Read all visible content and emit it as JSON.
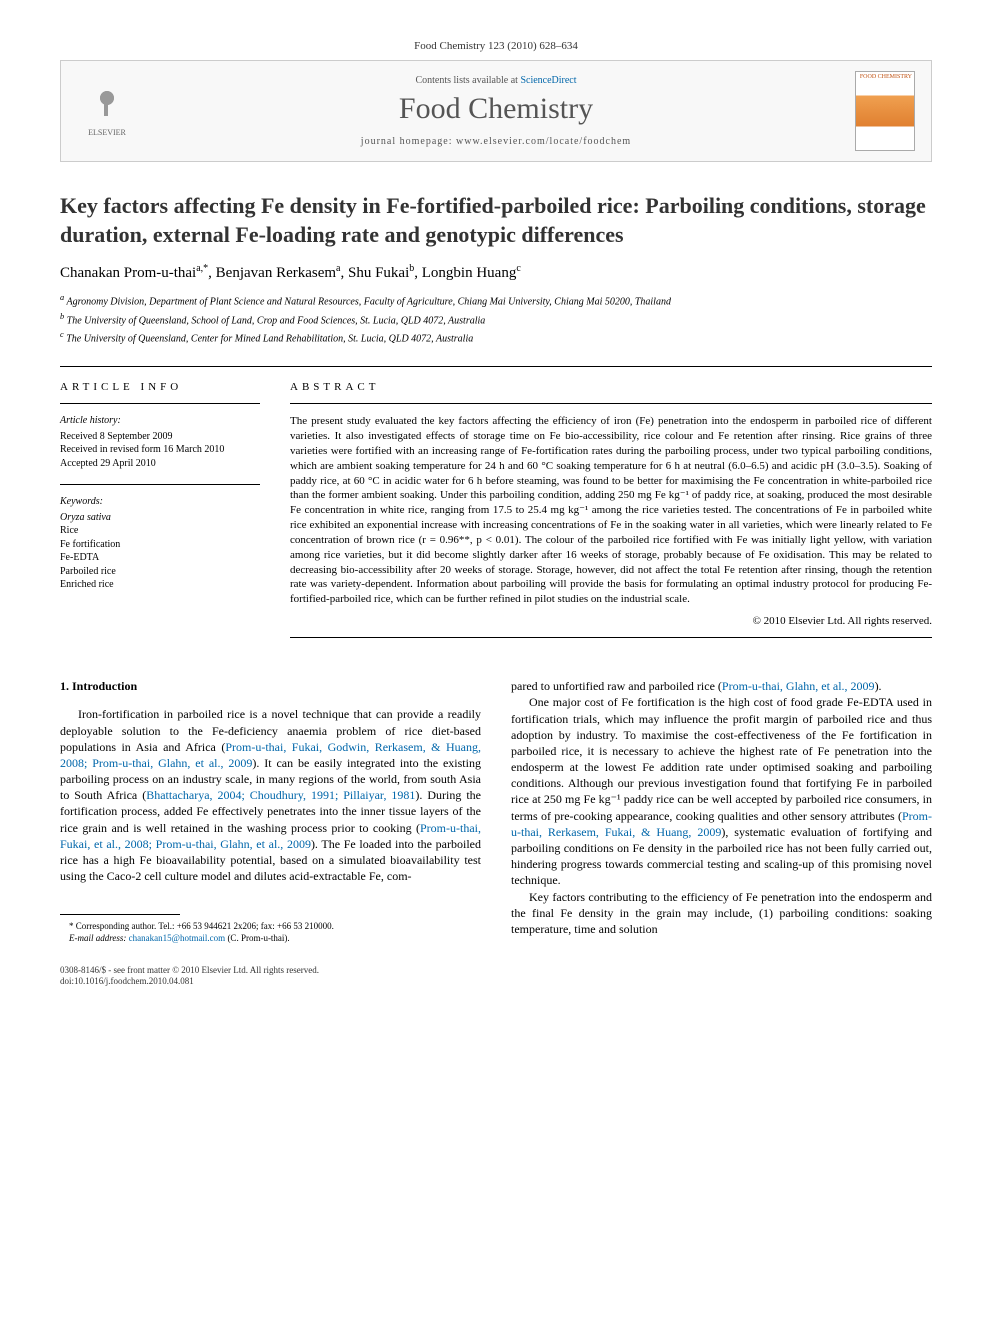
{
  "journal_ref": "Food Chemistry 123 (2010) 628–634",
  "header": {
    "contents_prefix": "Contents lists available at ",
    "contents_link": "ScienceDirect",
    "journal_name": "Food Chemistry",
    "homepage_prefix": "journal homepage: ",
    "homepage_url": "www.elsevier.com/locate/foodchem",
    "publisher": "ELSEVIER",
    "cover_label": "FOOD CHEMISTRY"
  },
  "title": "Key factors affecting Fe density in Fe-fortified-parboiled rice: Parboiling conditions, storage duration, external Fe-loading rate and genotypic differences",
  "authors_html": "Chanakan Prom-u-thai",
  "authors": [
    {
      "name": "Chanakan Prom-u-thai",
      "sup": "a,*"
    },
    {
      "name": "Benjavan Rerkasem",
      "sup": "a"
    },
    {
      "name": "Shu Fukai",
      "sup": "b"
    },
    {
      "name": "Longbin Huang",
      "sup": "c"
    }
  ],
  "affiliations": [
    {
      "sup": "a",
      "text": "Agronomy Division, Department of Plant Science and Natural Resources, Faculty of Agriculture, Chiang Mai University, Chiang Mai 50200, Thailand"
    },
    {
      "sup": "b",
      "text": "The University of Queensland, School of Land, Crop and Food Sciences, St. Lucia, QLD 4072, Australia"
    },
    {
      "sup": "c",
      "text": "The University of Queensland, Center for Mined Land Rehabilitation, St. Lucia, QLD 4072, Australia"
    }
  ],
  "article_info": {
    "heading": "ARTICLE INFO",
    "history_label": "Article history:",
    "history": [
      "Received 8 September 2009",
      "Received in revised form 16 March 2010",
      "Accepted 29 April 2010"
    ],
    "keywords_label": "Keywords:",
    "keywords": [
      "Oryza sativa",
      "Rice",
      "Fe fortification",
      "Fe-EDTA",
      "Parboiled rice",
      "Enriched rice"
    ]
  },
  "abstract": {
    "heading": "ABSTRACT",
    "text": "The present study evaluated the key factors affecting the efficiency of iron (Fe) penetration into the endosperm in parboiled rice of different varieties. It also investigated effects of storage time on Fe bio-accessibility, rice colour and Fe retention after rinsing. Rice grains of three varieties were fortified with an increasing range of Fe-fortification rates during the parboiling process, under two typical parboiling conditions, which are ambient soaking temperature for 24 h and 60 °C soaking temperature for 6 h at neutral (6.0–6.5) and acidic pH (3.0–3.5). Soaking of paddy rice, at 60 °C in acidic water for 6 h before steaming, was found to be better for maximising the Fe concentration in white-parboiled rice than the former ambient soaking. Under this parboiling condition, adding 250 mg Fe kg⁻¹ of paddy rice, at soaking, produced the most desirable Fe concentration in white rice, ranging from 17.5 to 25.4 mg kg⁻¹ among the rice varieties tested. The concentrations of Fe in parboiled white rice exhibited an exponential increase with increasing concentrations of Fe in the soaking water in all varieties, which were linearly related to Fe concentration of brown rice (r = 0.96**, p < 0.01). The colour of the parboiled rice fortified with Fe was initially light yellow, with variation among rice varieties, but it did become slightly darker after 16 weeks of storage, probably because of Fe oxidisation. This may be related to decreasing bio-accessibility after 20 weeks of storage. Storage, however, did not affect the total Fe retention after rinsing, though the retention rate was variety-dependent. Information about parboiling will provide the basis for formulating an optimal industry protocol for producing Fe-fortified-parboiled rice, which can be further refined in pilot studies on the industrial scale.",
    "copyright": "© 2010 Elsevier Ltd. All rights reserved."
  },
  "body": {
    "section_num": "1.",
    "section_title": "Introduction",
    "left_paras": [
      "Iron-fortification in parboiled rice is a novel technique that can provide a readily deployable solution to the Fe-deficiency anaemia problem of rice diet-based populations in Asia and Africa (Prom-u-thai, Fukai, Godwin, Rerkasem, & Huang, 2008; Prom-u-thai, Glahn, et al., 2009). It can be easily integrated into the existing parboiling process on an industry scale, in many regions of the world, from south Asia to South Africa (Bhattacharya, 2004; Choudhury, 1991; Pillaiyar, 1981). During the fortification process, added Fe effectively penetrates into the inner tissue layers of the rice grain and is well retained in the washing process prior to cooking (Prom-u-thai, Fukai, et al., 2008; Prom-u-thai, Glahn, et al., 2009). The Fe loaded into the parboiled rice has a high Fe bioavailability potential, based on a simulated bioavailability test using the Caco-2 cell culture model and dilutes acid-extractable Fe, com-"
    ],
    "right_paras": [
      "pared to unfortified raw and parboiled rice (Prom-u-thai, Glahn, et al., 2009).",
      "One major cost of Fe fortification is the high cost of food grade Fe-EDTA used in fortification trials, which may influence the profit margin of parboiled rice and thus adoption by industry. To maximise the cost-effectiveness of the Fe fortification in parboiled rice, it is necessary to achieve the highest rate of Fe penetration into the endosperm at the lowest Fe addition rate under optimised soaking and parboiling conditions. Although our previous investigation found that fortifying Fe in parboiled rice at 250 mg Fe kg⁻¹ paddy rice can be well accepted by parboiled rice consumers, in terms of pre-cooking appearance, cooking qualities and other sensory attributes (Prom-u-thai, Rerkasem, Fukai, & Huang, 2009), systematic evaluation of fortifying and parboiling conditions on Fe density in the parboiled rice has not been fully carried out, hindering progress towards commercial testing and scaling-up of this promising novel technique.",
      "Key factors contributing to the efficiency of Fe penetration into the endosperm and the final Fe density in the grain may include, (1) parboiling conditions: soaking temperature, time and solution"
    ]
  },
  "footnote": {
    "corresponding": "* Corresponding author. Tel.: +66 53 944621 2x206; fax: +66 53 210000.",
    "email_label": "E-mail address:",
    "email": "chanakan15@hotmail.com",
    "email_who": "(C. Prom-u-thai)."
  },
  "footer": {
    "issn": "0308-8146/$ - see front matter © 2010 Elsevier Ltd. All rights reserved.",
    "doi": "doi:10.1016/j.foodchem.2010.04.081"
  },
  "colors": {
    "link": "#0066aa",
    "text": "#000000",
    "muted": "#555555",
    "border": "#cccccc"
  }
}
